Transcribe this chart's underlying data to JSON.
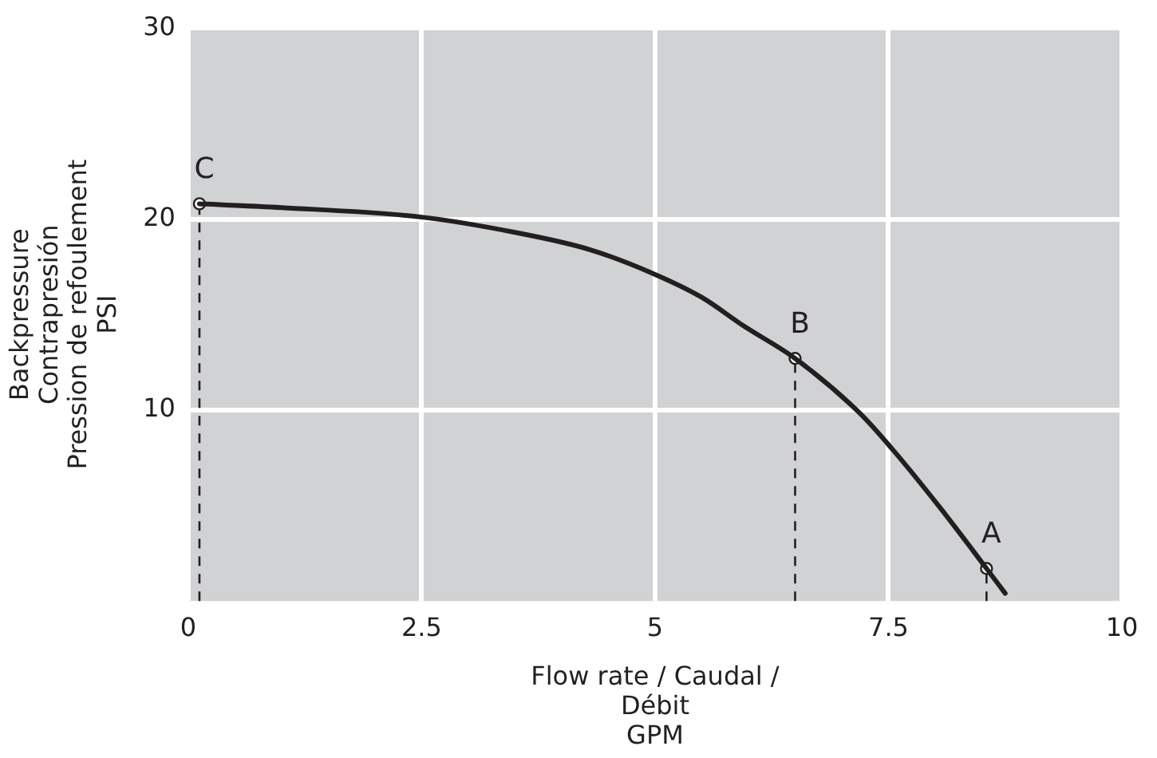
{
  "chart_data": {
    "type": "line",
    "xlabel": "Flow rate / Caudal /\nDébit\nGPM",
    "ylabel": "Backpressure\nContrapresión\nPression de refoulement\nPSI",
    "series": [
      {
        "color": "#231f20",
        "marker": "none",
        "line_style": "solid",
        "x": [
          0.12,
          1.0,
          2.5,
          3.5,
          4.3,
          5.0,
          5.5,
          5.95,
          6.5,
          7.2,
          7.55,
          8.05,
          8.55,
          8.75
        ],
        "values": [
          20.8,
          20.6,
          20.1,
          19.3,
          18.4,
          17.1,
          15.9,
          14.4,
          12.7,
          9.8,
          7.9,
          4.9,
          1.7,
          0.4
        ]
      },
      {
        "type": "lollipop",
        "color": "#231f20",
        "marker": "circle",
        "line_style": "dashed",
        "x": [
          0.12,
          6.5,
          8.55
        ],
        "values": [
          20.8,
          12.7,
          1.7
        ]
      }
    ],
    "annotations": [
      {
        "text": "C",
        "x": 0.12,
        "y": 20.8
      },
      {
        "text": "B",
        "x": 6.5,
        "y": 12.7
      },
      {
        "text": "A",
        "x": 8.55,
        "y": 1.7
      }
    ],
    "xlim": [
      0,
      10
    ],
    "xticks": [
      0,
      2.5,
      5,
      7.5,
      10
    ],
    "ylim": [
      0,
      30
    ],
    "yticks": [
      10,
      20,
      30
    ],
    "grid": true,
    "legend": false
  }
}
